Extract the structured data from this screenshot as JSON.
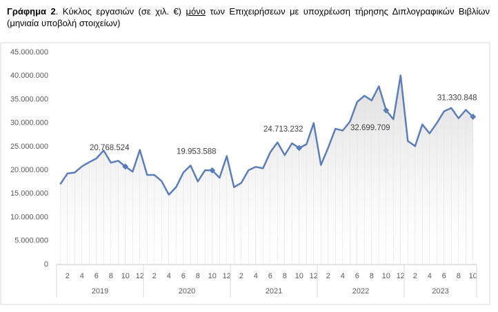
{
  "chart_data": {
    "type": "line",
    "title": [
      "Γράφημα 2",
      ". Κύκλος εργασιών (σε χιλ. €) ",
      "μόνο",
      " των Επιχειρήσεων με υποχρέωση τήρησης Διπλογραφικών Βιβλίων (μηνιαία υποβολή στοιχείων)"
    ],
    "categories": [
      null,
      "2",
      null,
      "4",
      null,
      "6",
      null,
      "8",
      null,
      "10",
      null,
      "12",
      null,
      "2",
      null,
      "4",
      null,
      "6",
      null,
      "8",
      null,
      "10",
      null,
      "12",
      null,
      "2",
      null,
      "4",
      null,
      "6",
      null,
      "8",
      null,
      "10",
      null,
      "12",
      null,
      "2",
      null,
      "4",
      null,
      "6",
      null,
      "8",
      null,
      "10",
      null,
      "12",
      null,
      "2",
      null,
      "4",
      null,
      "6",
      null,
      "8",
      null,
      "10"
    ],
    "years": [
      "2019",
      "2020",
      "2021",
      "2022",
      "2023"
    ],
    "values": [
      17000000,
      19300000,
      19500000,
      20800000,
      21700000,
      22500000,
      24200000,
      21600000,
      22000000,
      20768524,
      19700000,
      24300000,
      19000000,
      19000000,
      17700000,
      14800000,
      16400000,
      19500000,
      21000000,
      17600000,
      20000000,
      19953588,
      18400000,
      23000000,
      16400000,
      17300000,
      20000000,
      20700000,
      20400000,
      23800000,
      25900000,
      23200000,
      25700000,
      24713232,
      25500000,
      30000000,
      21100000,
      24800000,
      28800000,
      28400000,
      30300000,
      34500000,
      35800000,
      34800000,
      37800000,
      32699709,
      30800000,
      40100000,
      26200000,
      25100000,
      29700000,
      27800000,
      30000000,
      32500000,
      33200000,
      31000000,
      32800000,
      31330848
    ],
    "value_labels": [
      null,
      null,
      null,
      null,
      null,
      null,
      null,
      null,
      null,
      "20.768.524",
      null,
      null,
      null,
      null,
      null,
      null,
      null,
      null,
      null,
      null,
      null,
      "19.953.588",
      null,
      null,
      null,
      null,
      null,
      null,
      null,
      null,
      null,
      null,
      null,
      "24.713.232",
      null,
      null,
      null,
      null,
      null,
      null,
      null,
      null,
      null,
      null,
      null,
      "32.699.709",
      null,
      null,
      null,
      null,
      null,
      null,
      null,
      null,
      null,
      null,
      null,
      "31.330.848"
    ],
    "color": "#5b7db8",
    "ylim": [
      0,
      45000000
    ],
    "yticks": [
      0,
      {
        "value": 5000000,
        "label": "5.000.000"
      },
      {
        "value": 10000000,
        "label": "10.000.000"
      },
      {
        "value": 15000000,
        "label": "15.000.000"
      },
      {
        "value": 20000000,
        "label": "20.000.000"
      },
      {
        "value": 25000000,
        "label": "25.000.000"
      },
      {
        "value": 30000000,
        "label": "30.000.000"
      },
      {
        "value": 35000000,
        "label": "35.000.000"
      },
      {
        "value": 40000000,
        "label": "40.000.000"
      },
      {
        "value": 45000000,
        "label": "45.000.000"
      }
    ],
    "grid": false
  }
}
